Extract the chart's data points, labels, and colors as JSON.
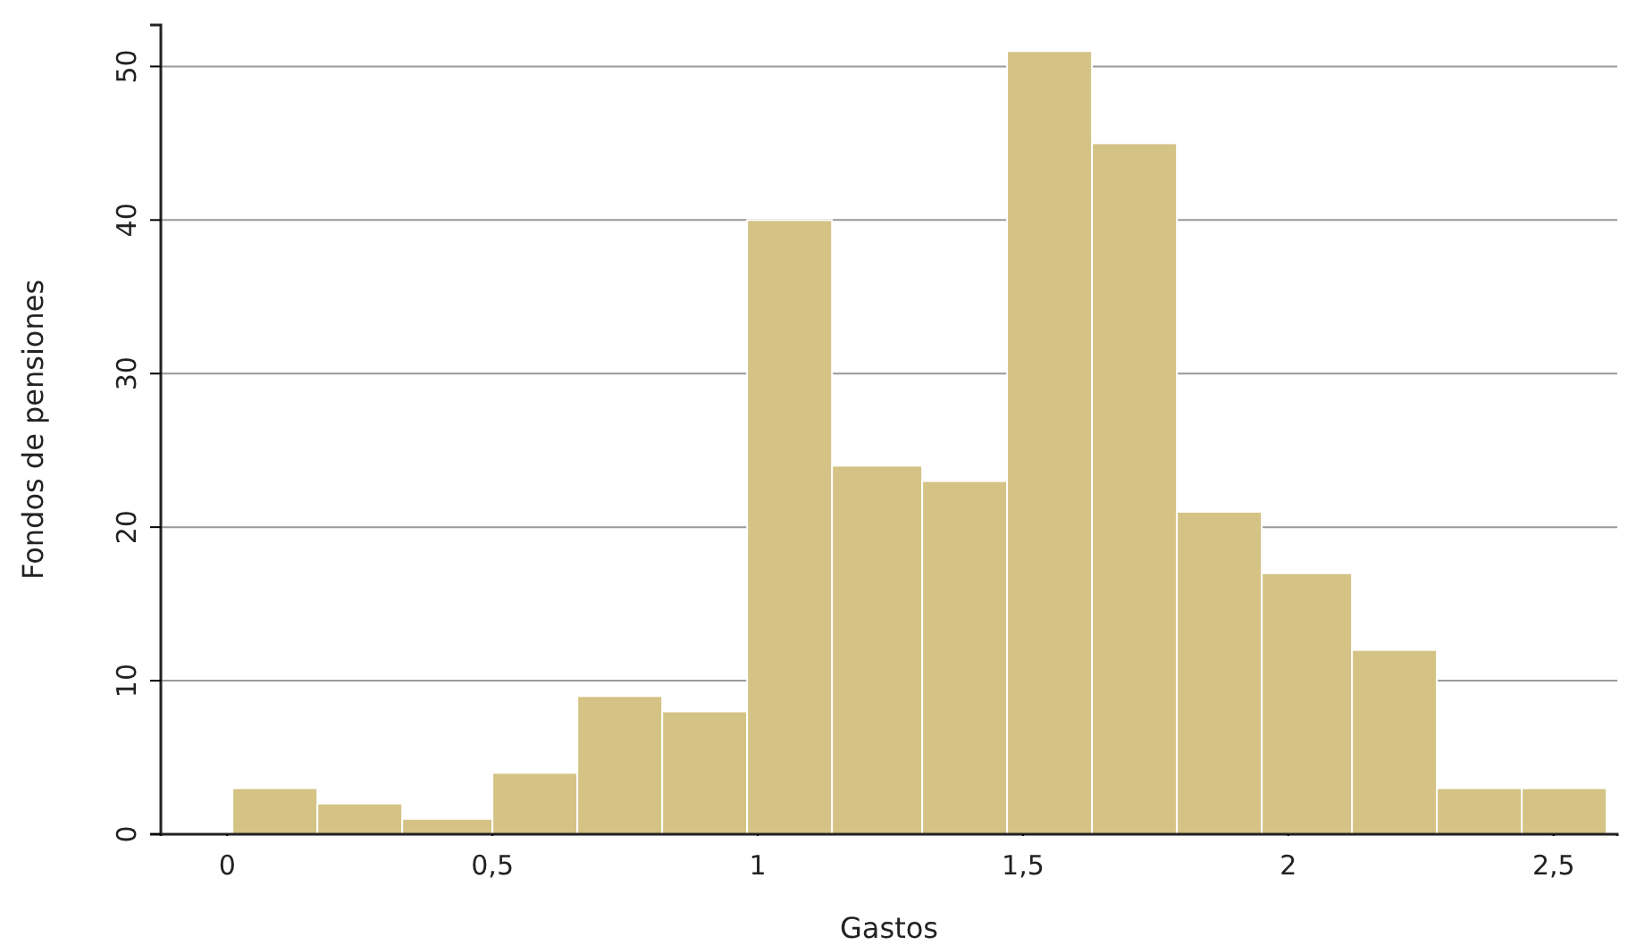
{
  "chart_data": {
    "type": "histogram",
    "xlabel": "Gastos",
    "ylabel": "Fondos de pensiones",
    "bins": [
      0.01,
      0.17,
      0.33,
      0.5,
      0.66,
      0.82,
      0.98,
      1.14,
      1.31,
      1.47,
      1.63,
      1.79,
      1.95,
      2.12,
      2.28,
      2.44,
      2.6
    ],
    "values": [
      3,
      2,
      1,
      4,
      9,
      8,
      40,
      24,
      23,
      51,
      45,
      21,
      17,
      12,
      3,
      3
    ],
    "color": "#d4c385",
    "xlim": [
      -0.125,
      2.62
    ],
    "ylim": [
      0,
      52.7
    ],
    "xticks": [
      0,
      {
        "value": 0.5,
        "label": "0,5"
      },
      1,
      {
        "value": 1.5,
        "label": "1,5"
      },
      2,
      {
        "value": 2.5,
        "label": "2,5"
      }
    ],
    "yticks": [
      0,
      10,
      20,
      30,
      40,
      50
    ],
    "grid": "y"
  }
}
